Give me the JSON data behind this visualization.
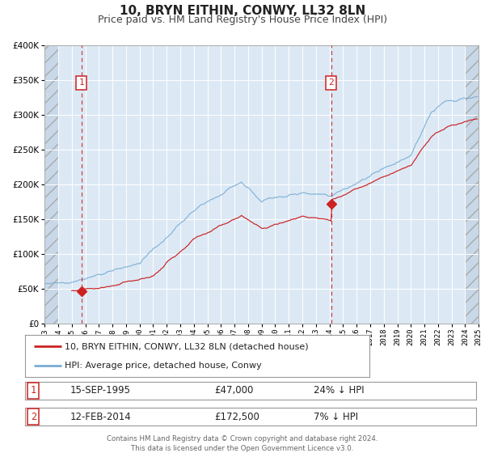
{
  "title": "10, BRYN EITHIN, CONWY, LL32 8LN",
  "subtitle": "Price paid vs. HM Land Registry's House Price Index (HPI)",
  "title_fontsize": 11,
  "subtitle_fontsize": 9,
  "background_color": "#ffffff",
  "plot_bg_color": "#dce9f5",
  "hatch_color": "#c8d8e8",
  "grid_color": "#ffffff",
  "xmin": 1993,
  "xmax": 2025,
  "ymin": 0,
  "ymax": 400000,
  "yticks": [
    0,
    50000,
    100000,
    150000,
    200000,
    250000,
    300000,
    350000,
    400000
  ],
  "sale1_x": 1995.71,
  "sale1_y": 47000,
  "sale1_label": "1",
  "sale1_date": "15-SEP-1995",
  "sale1_price": "£47,000",
  "sale1_hpi": "24% ↓ HPI",
  "sale2_x": 2014.12,
  "sale2_y": 172500,
  "sale2_label": "2",
  "sale2_date": "12-FEB-2014",
  "sale2_price": "£172,500",
  "sale2_hpi": "7% ↓ HPI",
  "red_line_color": "#cc2222",
  "blue_line_color": "#7aadd4",
  "vline_color": "#cc2222",
  "marker_color": "#cc2222",
  "legend_label_red": "10, BRYN EITHIN, CONWY, LL32 8LN (detached house)",
  "legend_label_blue": "HPI: Average price, detached house, Conwy",
  "footer_text": "Contains HM Land Registry data © Crown copyright and database right 2024.\nThis data is licensed under the Open Government Licence v3.0."
}
